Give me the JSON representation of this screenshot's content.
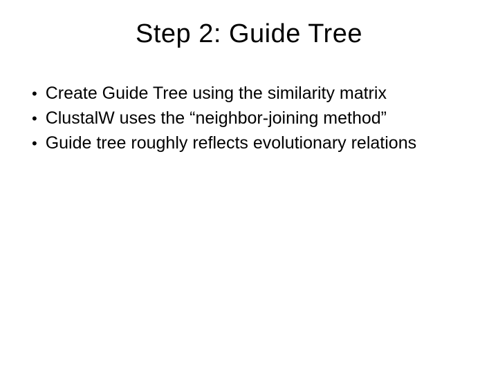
{
  "slide": {
    "title": "Step 2: Guide Tree",
    "bullets": [
      "Create Guide Tree using the similarity matrix",
      "ClustalW uses the “neighbor-joining method”",
      "Guide tree roughly reflects evolutionary relations"
    ]
  },
  "style": {
    "background_color": "#ffffff",
    "text_color": "#000000",
    "title_fontsize": 38,
    "body_fontsize": 25,
    "font_family": "Arial"
  }
}
